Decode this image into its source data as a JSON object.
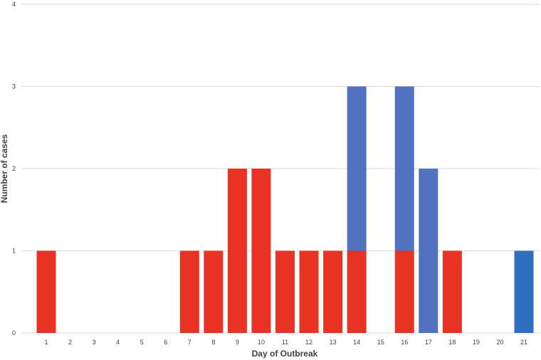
{
  "chart_data": {
    "type": "bar",
    "stacked": true,
    "categories": [
      "1",
      "2",
      "3",
      "4",
      "5",
      "6",
      "7",
      "8",
      "9",
      "10",
      "11",
      "12",
      "13",
      "14",
      "15",
      "16",
      "17",
      "18",
      "19",
      "20",
      "21"
    ],
    "series": [
      {
        "values": [
          1,
          0,
          0,
          0,
          0,
          0,
          1,
          1,
          2,
          2,
          1,
          1,
          1,
          1,
          0,
          1,
          0,
          1,
          0,
          0,
          0
        ],
        "color": "#E83324"
      },
      {
        "values": [
          0,
          0,
          0,
          0,
          0,
          0,
          0,
          0,
          0,
          0,
          0,
          0,
          0,
          2,
          0,
          2,
          2,
          0,
          0,
          0,
          0
        ],
        "color": "#5272C0"
      },
      {
        "values": [
          0,
          0,
          0,
          0,
          0,
          0,
          0,
          0,
          0,
          0,
          0,
          0,
          0,
          0,
          0,
          0,
          0,
          0,
          0,
          0,
          1
        ],
        "color": "#2E6FBF"
      }
    ],
    "xlabel": "Day of Outbreak",
    "ylabel": "Number of cases",
    "ylim": [
      0,
      4
    ],
    "yticks": [
      "0",
      "1",
      "2",
      "3",
      "4"
    ],
    "grid": true,
    "legend": "none",
    "gridColor": "#D9D9D9",
    "textColor": "#404040"
  }
}
